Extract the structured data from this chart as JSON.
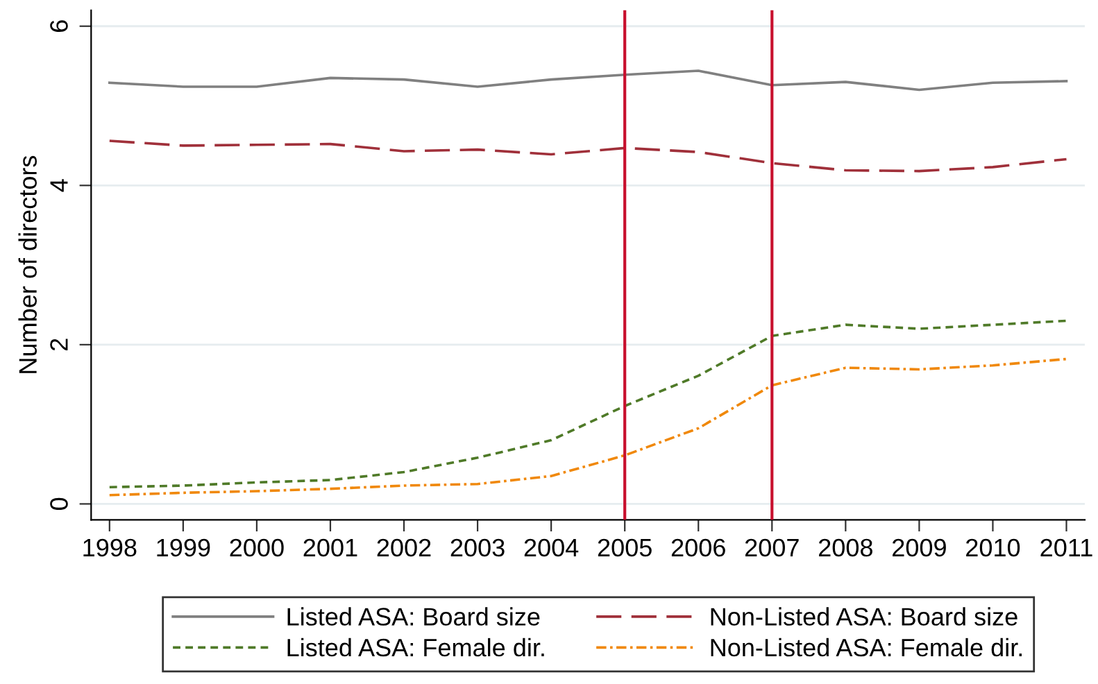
{
  "chart_data": {
    "type": "line",
    "ylabel": "Number of directors",
    "x": [
      1998,
      1999,
      2000,
      2001,
      2002,
      2003,
      2004,
      2005,
      2006,
      2007,
      2008,
      2009,
      2010,
      2011
    ],
    "series": [
      {
        "name": "Listed ASA: Board size",
        "color": "#808080",
        "line_style": "solid",
        "values": [
          5.29,
          5.24,
          5.24,
          5.35,
          5.33,
          5.24,
          5.33,
          5.39,
          5.44,
          5.26,
          5.3,
          5.2,
          5.29,
          5.31
        ]
      },
      {
        "name": "Non-Listed ASA: Board size",
        "color": "#a0303a",
        "line_style": "longdash",
        "values": [
          4.56,
          4.5,
          4.51,
          4.52,
          4.43,
          4.45,
          4.39,
          4.47,
          4.42,
          4.28,
          4.19,
          4.18,
          4.23,
          4.33
        ]
      },
      {
        "name": "Listed ASA: Female dir.",
        "color": "#4f7a28",
        "line_style": "dashed",
        "values": [
          0.21,
          0.23,
          0.27,
          0.3,
          0.4,
          0.58,
          0.8,
          1.23,
          1.61,
          2.11,
          2.25,
          2.2,
          2.25,
          2.3
        ]
      },
      {
        "name": "Non-Listed ASA: Female dir.",
        "color": "#f0880a",
        "line_style": "dashdot",
        "values": [
          0.11,
          0.14,
          0.16,
          0.19,
          0.23,
          0.25,
          0.35,
          0.61,
          0.95,
          1.49,
          1.71,
          1.69,
          1.74,
          1.82
        ]
      }
    ],
    "xlim": [
      1997.75,
      2011.25
    ],
    "ylim": [
      -0.2,
      6.2
    ],
    "xticks": [
      1998,
      1999,
      2000,
      2001,
      2002,
      2003,
      2004,
      2005,
      2006,
      2007,
      2008,
      2009,
      2010,
      2011
    ],
    "yticks": [
      0,
      2,
      4,
      6
    ],
    "grid": "y",
    "legend": "bottom",
    "ref_lines": [
      {
        "axis": "x",
        "value": 2005,
        "color": "#c8102e"
      },
      {
        "axis": "x",
        "value": 2007,
        "color": "#c8102e"
      }
    ]
  }
}
